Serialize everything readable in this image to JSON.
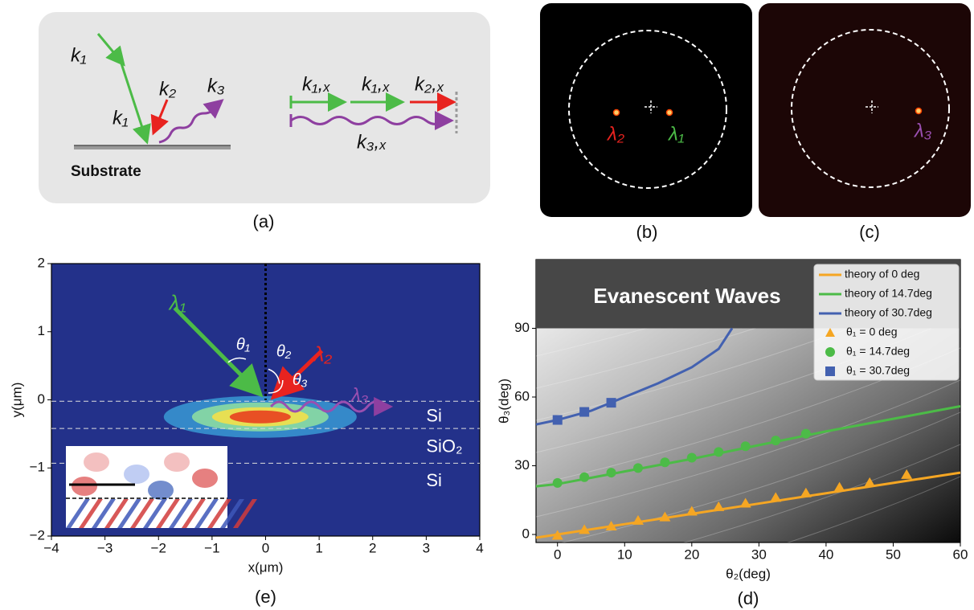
{
  "panels": {
    "a": {
      "label": "(a)",
      "k1_in": "k₁",
      "k1_out": "k₁",
      "k2": "k₂",
      "k3": "k₃",
      "substrate": "Substrate",
      "k1x_first": "k₁,ₓ",
      "k1x_second": "k₁,ₓ",
      "k2x": "k₂,ₓ",
      "k3x": "k₃,ₓ"
    },
    "b": {
      "label": "(b)",
      "lambda2": "λ₂",
      "lambda1": "λ₁"
    },
    "c": {
      "label": "(c)",
      "lambda3": "λ₃"
    }
  },
  "chart_data": [
    {
      "type": "heatmap",
      "label": "(e)",
      "xlabel": "x(μm)",
      "ylabel": "y(μm)",
      "xlim": [
        -4,
        4
      ],
      "ylim": [
        -2,
        2
      ],
      "xticks": [
        {
          "value": -4,
          "label": "−4"
        },
        {
          "value": -3,
          "label": "−3"
        },
        {
          "value": -2,
          "label": "−2"
        },
        {
          "value": -1,
          "label": "−1"
        },
        0,
        1,
        2,
        3,
        4
      ],
      "yticks": [
        {
          "value": -2,
          "label": "−2"
        },
        {
          "value": -1,
          "label": "−1"
        },
        0,
        1,
        2
      ],
      "annotations": [
        "λ₁",
        "θ₁",
        "θ₂",
        "λ₂",
        "θ₃",
        "λ₃",
        "Si",
        "SiO₂",
        "Si"
      ]
    },
    {
      "type": "line",
      "label": "(d)",
      "xlabel": "θ₂(deg)",
      "ylabel": "θ₃(deg)",
      "annotation": "Evanescent Waves",
      "xlim": [
        -3.2,
        60
      ],
      "ylim": [
        -3.5,
        120
      ],
      "xticks": [
        0,
        10,
        20,
        30,
        40,
        50,
        60
      ],
      "yticks": [
        0,
        30,
        60,
        90
      ],
      "legend": "upper right",
      "series": [
        {
          "name": "theory of 0 deg",
          "color": "#f5a623",
          "x": [
            -3.2,
            0,
            10,
            20,
            30,
            40,
            50,
            60
          ],
          "values": [
            -1.4,
            0,
            4.5,
            9,
            13.5,
            18,
            22.5,
            27
          ]
        },
        {
          "name": "theory of 14.7deg",
          "color": "#4cbb47",
          "x": [
            -3.2,
            0,
            10,
            20,
            30,
            40,
            50,
            60
          ],
          "values": [
            21,
            22,
            27.5,
            33,
            39,
            45,
            50.5,
            56
          ]
        },
        {
          "name": "theory of 30.7deg",
          "color": "#4361b0",
          "x": [
            -3.2,
            0,
            5,
            10,
            15,
            20,
            24,
            26
          ],
          "values": [
            48,
            50,
            54,
            60,
            66,
            73,
            81,
            90
          ]
        },
        {
          "name": "θ₁ = 0 deg",
          "color": "#f5a623",
          "marker": "triangle",
          "x": [
            0,
            4,
            8,
            12,
            16,
            20,
            24,
            28,
            32.5,
            37,
            42,
            46.5,
            52
          ],
          "values": [
            -0.5,
            2,
            3.5,
            6,
            7.5,
            10,
            12,
            13.5,
            16,
            18,
            20.5,
            22.5,
            26
          ]
        },
        {
          "name": "θ₁ = 14.7deg",
          "color": "#4cbb47",
          "marker": "circle",
          "x": [
            0,
            4,
            8,
            12,
            16,
            20,
            24,
            28,
            32.5,
            37
          ],
          "values": [
            22.5,
            25,
            27,
            29,
            31.5,
            33.5,
            36,
            38.5,
            41,
            44
          ]
        },
        {
          "name": "θ₁ = 30.7deg",
          "color": "#4361b0",
          "marker": "square",
          "x": [
            0,
            4,
            8
          ],
          "values": [
            50,
            53.5,
            57.5
          ]
        }
      ]
    }
  ]
}
